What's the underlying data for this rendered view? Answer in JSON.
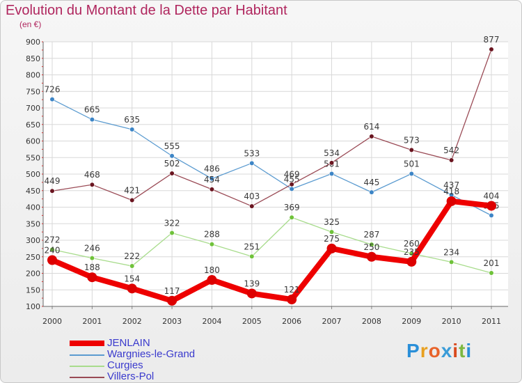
{
  "title": "Evolution du Montant de la Dette par Habitant",
  "subtitle": "(en €)",
  "brand": {
    "letters": [
      "P",
      "r",
      "o",
      "x",
      "i",
      "t",
      "i"
    ],
    "colors": [
      "#2a8fd8",
      "#e8a020",
      "#e8632a",
      "#3a9cd8",
      "#d94a1e",
      "#7cb842",
      "#2a8fd8"
    ]
  },
  "chart_data": {
    "type": "line",
    "x": [
      "2000",
      "2001",
      "2002",
      "2003",
      "2004",
      "2005",
      "2006",
      "2007",
      "2008",
      "2009",
      "2010",
      "2011"
    ],
    "ylim": [
      100,
      900
    ],
    "yticks": [
      "100",
      "150",
      "200",
      "250",
      "300",
      "350",
      "400",
      "450",
      "500",
      "550",
      "600",
      "650",
      "700",
      "750",
      "800",
      "850",
      "900"
    ],
    "grid": true,
    "legend_placement": "bottom-left",
    "series": [
      {
        "name": "Wargnies-le-Grand",
        "color": "#5b9bd0",
        "dot": "#3d85c6",
        "thick": false,
        "values": [
          726,
          665,
          635,
          555,
          486,
          533,
          455,
          501,
          445,
          501,
          437,
          375
        ],
        "labels": [
          "726",
          "665",
          "635",
          "555",
          "486",
          "533",
          "455",
          "501",
          "445",
          "501",
          "437",
          "375"
        ]
      },
      {
        "name": "Curgies",
        "color": "#a8dc8c",
        "dot": "#6fc23a",
        "thick": false,
        "values": [
          272,
          246,
          222,
          322,
          288,
          251,
          369,
          325,
          287,
          260,
          234,
          201
        ],
        "labels": [
          "272",
          "246",
          "222",
          "322",
          "288",
          "251",
          "369",
          "325",
          "287",
          "260",
          "234",
          "201"
        ]
      },
      {
        "name": "Villers-Pol",
        "color": "#9a4a55",
        "dot": "#6a1520",
        "thick": false,
        "values": [
          449,
          468,
          421,
          502,
          454,
          403,
          469,
          534,
          614,
          573,
          542,
          877
        ],
        "labels": [
          "449",
          "468",
          "421",
          "502",
          "454",
          "403",
          "469",
          "534",
          "614",
          "573",
          "542",
          "877"
        ]
      },
      {
        "name": "JENLAIN",
        "color": "#ee0000",
        "dot": "#dd0000",
        "thick": true,
        "values": [
          240,
          188,
          154,
          117,
          180,
          139,
          121,
          275,
          250,
          235,
          418,
          404
        ],
        "labels": [
          "240",
          "188",
          "154",
          "117",
          "180",
          "139",
          "121",
          "275",
          "250",
          "235",
          "418",
          "404"
        ]
      }
    ],
    "legend_order": [
      "JENLAIN",
      "Wargnies-le-Grand",
      "Curgies",
      "Villers-Pol"
    ]
  }
}
